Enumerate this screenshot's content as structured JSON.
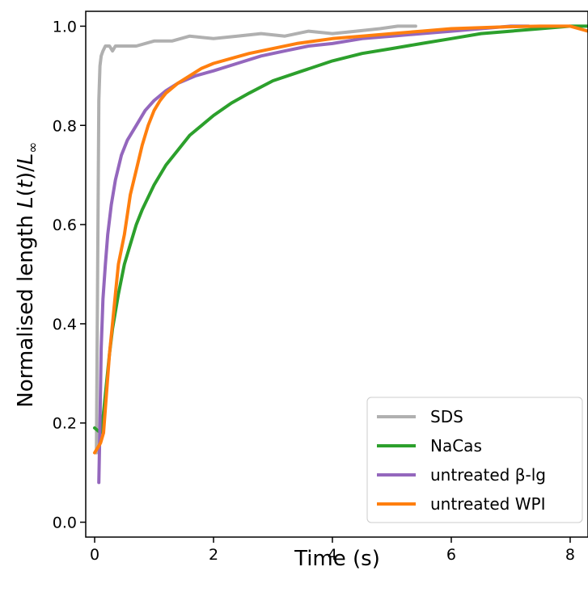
{
  "chart_data": {
    "type": "line",
    "title": "",
    "xlabel": "Time (s)",
    "ylabel": "Normalised length L(t)/L∞",
    "ylabel_parts": {
      "prefix": "Normalised length ",
      "L1": "L",
      "paren_open": "(",
      "t": "t",
      "paren_close": ")/",
      "L2": "L",
      "sub": "∞"
    },
    "xlim": [
      -0.15,
      8.3
    ],
    "ylim": [
      -0.03,
      1.03
    ],
    "xticks": [
      0,
      2,
      4,
      6,
      8
    ],
    "yticks": [
      0.0,
      0.2,
      0.4,
      0.6,
      0.8,
      1.0
    ],
    "xtick_labels": [
      "0",
      "2",
      "4",
      "6",
      "8"
    ],
    "ytick_labels": [
      "0.0",
      "0.2",
      "0.4",
      "0.6",
      "0.8",
      "1.0"
    ],
    "grid": false,
    "legend": "bottom-right",
    "series": [
      {
        "name": "SDS",
        "color": "#b0b0b0",
        "x": [
          0.03,
          0.05,
          0.07,
          0.09,
          0.11,
          0.14,
          0.18,
          0.25,
          0.3,
          0.35,
          0.5,
          0.7,
          1.0,
          1.3,
          1.6,
          2.0,
          2.4,
          2.8,
          3.2,
          3.6,
          4.0,
          4.4,
          4.8,
          5.1,
          5.4
        ],
        "y": [
          0.14,
          0.5,
          0.85,
          0.92,
          0.94,
          0.95,
          0.96,
          0.96,
          0.95,
          0.96,
          0.96,
          0.96,
          0.97,
          0.97,
          0.98,
          0.975,
          0.98,
          0.985,
          0.98,
          0.99,
          0.985,
          0.99,
          0.995,
          1.0,
          1.0
        ]
      },
      {
        "name": "NaCas",
        "color": "#2ca02c",
        "x": [
          0.0,
          0.05,
          0.1,
          0.15,
          0.2,
          0.25,
          0.3,
          0.4,
          0.5,
          0.6,
          0.7,
          0.8,
          1.0,
          1.2,
          1.4,
          1.6,
          1.8,
          2.0,
          2.3,
          2.6,
          3.0,
          3.5,
          4.0,
          4.5,
          5.0,
          5.5,
          6.0,
          6.5,
          7.0,
          7.5,
          8.0,
          8.3
        ],
        "y": [
          0.19,
          0.185,
          0.18,
          0.22,
          0.28,
          0.34,
          0.39,
          0.46,
          0.52,
          0.56,
          0.6,
          0.63,
          0.68,
          0.72,
          0.75,
          0.78,
          0.8,
          0.82,
          0.845,
          0.865,
          0.89,
          0.91,
          0.93,
          0.945,
          0.955,
          0.965,
          0.975,
          0.985,
          0.99,
          0.995,
          1.0,
          1.0
        ]
      },
      {
        "name": "untreated β-lg",
        "color": "#9467bd",
        "x": [
          0.07,
          0.09,
          0.11,
          0.14,
          0.18,
          0.22,
          0.28,
          0.35,
          0.45,
          0.55,
          0.7,
          0.85,
          1.0,
          1.2,
          1.4,
          1.7,
          2.0,
          2.4,
          2.8,
          3.2,
          3.6,
          4.0,
          4.5,
          5.0,
          5.5,
          6.0,
          6.5,
          7.0,
          7.3
        ],
        "y": [
          0.08,
          0.2,
          0.35,
          0.45,
          0.52,
          0.58,
          0.64,
          0.69,
          0.74,
          0.77,
          0.8,
          0.83,
          0.85,
          0.87,
          0.885,
          0.9,
          0.91,
          0.925,
          0.94,
          0.95,
          0.96,
          0.965,
          0.975,
          0.98,
          0.985,
          0.99,
          0.995,
          1.0,
          1.0
        ]
      },
      {
        "name": "untreated WPI",
        "color": "#ff7f0e",
        "x": [
          0.0,
          0.05,
          0.1,
          0.15,
          0.2,
          0.25,
          0.3,
          0.35,
          0.4,
          0.5,
          0.6,
          0.7,
          0.8,
          0.9,
          1.0,
          1.1,
          1.2,
          1.4,
          1.6,
          1.8,
          2.0,
          2.3,
          2.6,
          3.0,
          3.4,
          4.0,
          4.5,
          5.0,
          5.5,
          6.0,
          6.5,
          7.0,
          7.5,
          8.0,
          8.3
        ],
        "y": [
          0.14,
          0.15,
          0.16,
          0.18,
          0.26,
          0.34,
          0.4,
          0.46,
          0.52,
          0.58,
          0.66,
          0.71,
          0.76,
          0.8,
          0.83,
          0.85,
          0.865,
          0.885,
          0.9,
          0.915,
          0.925,
          0.935,
          0.945,
          0.955,
          0.965,
          0.975,
          0.98,
          0.985,
          0.99,
          0.995,
          0.997,
          0.999,
          1.0,
          1.0,
          0.99
        ]
      }
    ]
  }
}
